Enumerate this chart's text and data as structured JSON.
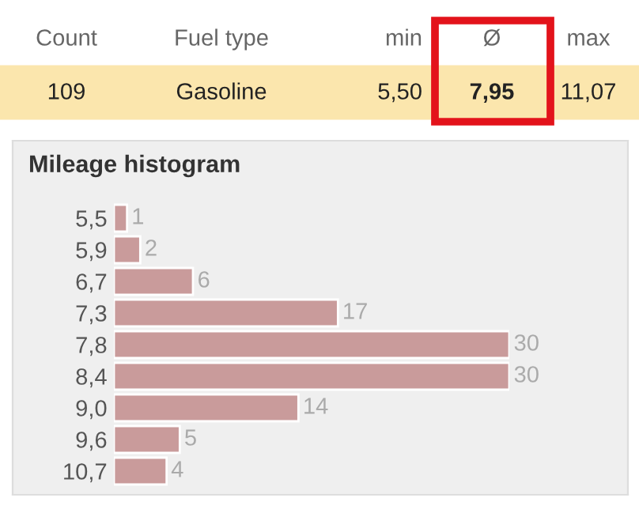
{
  "chart_data": [
    {
      "type": "other",
      "categories": [
        "Count",
        "Fuel type",
        "min",
        "Ø",
        "max"
      ],
      "value_labels": [
        "109",
        "Gasoline",
        "5,50",
        "7,95",
        "11,07"
      ]
    },
    {
      "type": "bar",
      "orientation": "horizontal",
      "title": "Mileage histogram",
      "categories": [
        "5,5",
        "5,9",
        "6,7",
        "7,3",
        "7,8",
        "8,4",
        "9,0",
        "9,6",
        "10,7"
      ],
      "values": [
        1,
        2,
        6,
        17,
        30,
        30,
        14,
        5,
        4
      ],
      "color": "#c99b9b",
      "data_labels": true
    }
  ]
}
